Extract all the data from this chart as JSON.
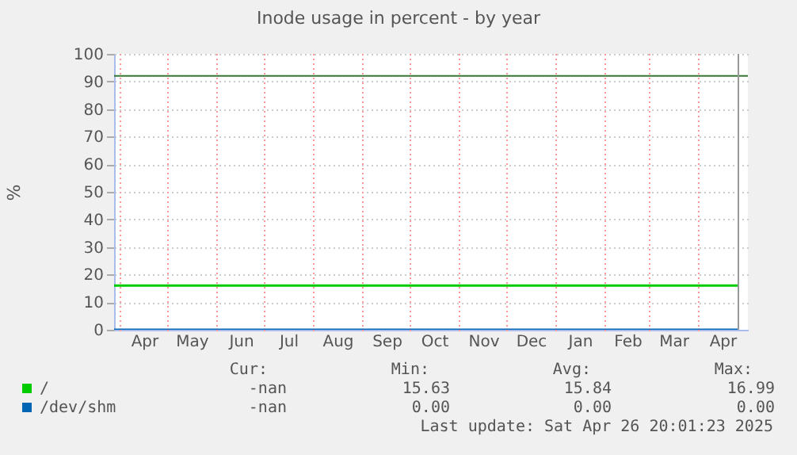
{
  "chart_data": {
    "type": "line",
    "title": "Inode usage in percent - by year",
    "ylabel": "%",
    "xlim": [
      "2024-03-28",
      "2025-05-02"
    ],
    "xticks": [
      {
        "value": "2024-04-01",
        "label": null
      },
      {
        "value": "2024-04-16",
        "label": "Apr"
      },
      {
        "value": "2024-05-01",
        "label": null
      },
      {
        "value": "2024-05-16",
        "label": "May"
      },
      {
        "value": "2024-06-01",
        "label": null
      },
      {
        "value": "2024-06-16",
        "label": "Jun"
      },
      {
        "value": "2024-07-01",
        "label": null
      },
      {
        "value": "2024-07-16",
        "label": "Jul"
      },
      {
        "value": "2024-08-01",
        "label": null
      },
      {
        "value": "2024-08-16",
        "label": "Aug"
      },
      {
        "value": "2024-09-01",
        "label": null
      },
      {
        "value": "2024-09-16",
        "label": "Sep"
      },
      {
        "value": "2024-10-01",
        "label": null
      },
      {
        "value": "2024-10-16",
        "label": "Oct"
      },
      {
        "value": "2024-11-01",
        "label": null
      },
      {
        "value": "2024-11-16",
        "label": "Nov"
      },
      {
        "value": "2024-12-01",
        "label": null
      },
      {
        "value": "2024-12-16",
        "label": "Dec"
      },
      {
        "value": "2025-01-01",
        "label": null
      },
      {
        "value": "2025-01-16",
        "label": "Jan"
      },
      {
        "value": "2025-02-01",
        "label": null
      },
      {
        "value": "2025-02-15",
        "label": "Feb"
      },
      {
        "value": "2025-03-01",
        "label": null
      },
      {
        "value": "2025-03-16",
        "label": "Mar"
      },
      {
        "value": "2025-04-01",
        "label": null
      },
      {
        "value": "2025-04-16",
        "label": "Apr"
      }
    ],
    "ylim": [
      0,
      100
    ],
    "yticks": [
      0,
      10,
      20,
      30,
      40,
      50,
      60,
      70,
      80,
      90,
      100
    ],
    "grid": true,
    "legend": "bottom",
    "series": [
      {
        "name": "/",
        "color": "#00cc00",
        "x": [
          "2024-03-28",
          "2025-04-26"
        ],
        "values": [
          16,
          16
        ]
      },
      {
        "name": "/dev/shm",
        "color": "#0066b3",
        "x": [
          "2024-03-28",
          "2025-04-26"
        ],
        "values": [
          0,
          0
        ]
      }
    ],
    "ref_lines": [
      {
        "axis": "y",
        "value": 92,
        "label": null,
        "color": "#337733"
      },
      {
        "axis": "x",
        "value": "2025-04-26",
        "label": null,
        "color": "#999999"
      }
    ],
    "annotations": [
      "Cur:",
      "Min:",
      "Avg:",
      "Max:",
      "-nan",
      "15.63",
      "15.84",
      "16.99",
      "-nan",
      "0.00",
      "0.00",
      "0.00",
      "Last update: Sat Apr 26 20:01:23 2025"
    ]
  }
}
